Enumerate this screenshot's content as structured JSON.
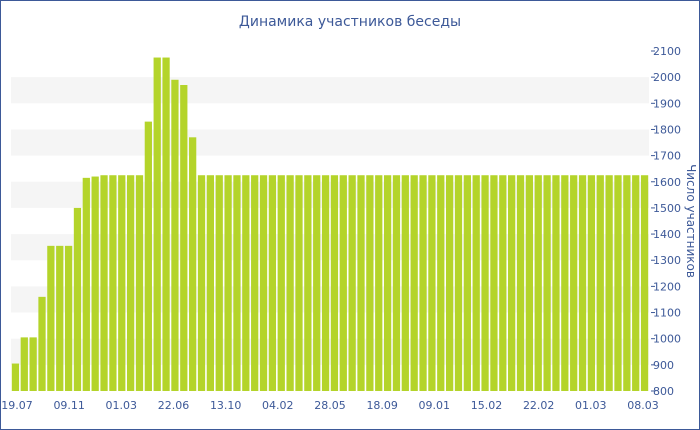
{
  "chart_data": {
    "type": "bar",
    "title": "Динамика участников беседы",
    "ylabel": "Число участников",
    "xlabel": "",
    "ylim": [
      800,
      2100
    ],
    "yticks": [
      800,
      900,
      1000,
      1100,
      1200,
      1300,
      1400,
      1500,
      1600,
      1700,
      1800,
      1900,
      2000,
      2100
    ],
    "xtick_labels": [
      "19.07",
      "09.11",
      "01.03",
      "22.06",
      "13.10",
      "04.02",
      "28.05",
      "18.09",
      "09.01",
      "15.02",
      "22.02",
      "01.03",
      "08.03"
    ],
    "grid": "horizontal-bands",
    "y_axis_position": "right",
    "values": [
      905,
      1005,
      1005,
      1160,
      1355,
      1355,
      1355,
      1500,
      1615,
      1620,
      1625,
      1625,
      1625,
      1625,
      1625,
      1830,
      2075,
      2075,
      1990,
      1970,
      1770,
      1625,
      1625,
      1625,
      1625,
      1625,
      1625,
      1625,
      1625,
      1625,
      1625,
      1625,
      1625,
      1625,
      1625,
      1625,
      1625,
      1625,
      1625,
      1625,
      1625,
      1625,
      1625,
      1625,
      1625,
      1625,
      1625,
      1625,
      1625,
      1625,
      1625,
      1625,
      1625,
      1625,
      1625,
      1625,
      1625,
      1625,
      1625,
      1625,
      1625,
      1625,
      1625,
      1625,
      1625,
      1625,
      1625,
      1625,
      1625,
      1625,
      1625,
      1625
    ],
    "colors": {
      "bar": "#b4d42a",
      "text": "#3d5998",
      "band": "#f5f5f5"
    }
  }
}
